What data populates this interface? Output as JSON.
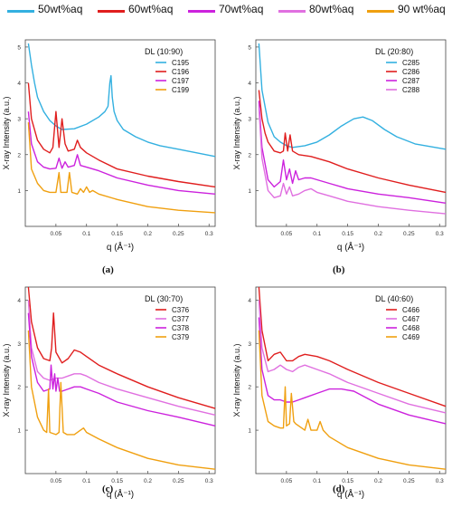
{
  "legend": [
    {
      "label": "50wt%aq",
      "color": "#33b0e0"
    },
    {
      "label": "60wt%aq",
      "color": "#e01e1e"
    },
    {
      "label": "70wt%aq",
      "color": "#cc22dd"
    },
    {
      "label": "80wt%aq",
      "color": "#e070e0"
    },
    {
      "label": "90 wt%aq",
      "color": "#f0a010"
    }
  ],
  "captions": [
    "(a)",
    "(b)",
    "(c)",
    "(d)"
  ],
  "chart_data": [
    {
      "type": "line",
      "title": "DL (10:90)",
      "xlabel": "q (Å⁻¹)",
      "ylabel": "X-ray Intensity (a.u.)",
      "xlim": [
        0,
        0.31
      ],
      "ylim": [
        0,
        5.2
      ],
      "xticks": [
        0.05,
        0.1,
        0.15,
        0.2,
        0.25,
        0.3
      ],
      "xtick_labels": [
        "0.05",
        "0.1",
        "0.15",
        "0.2",
        "0.25",
        "0.3"
      ],
      "yticks": [
        1,
        2,
        3,
        4,
        5
      ],
      "ytick_labels": [
        "1",
        "2",
        "3",
        "4",
        "5"
      ],
      "series": [
        {
          "name": "C195",
          "color": "#33b0e0",
          "x": [
            0.005,
            0.01,
            0.015,
            0.02,
            0.03,
            0.04,
            0.05,
            0.06,
            0.08,
            0.1,
            0.12,
            0.13,
            0.135,
            0.138,
            0.14,
            0.142,
            0.145,
            0.15,
            0.16,
            0.18,
            0.2,
            0.22,
            0.25,
            0.28,
            0.31
          ],
          "y": [
            5.1,
            4.5,
            4.0,
            3.6,
            3.2,
            2.95,
            2.8,
            2.7,
            2.72,
            2.85,
            3.05,
            3.2,
            3.35,
            4.0,
            4.2,
            3.6,
            3.2,
            2.95,
            2.7,
            2.5,
            2.35,
            2.25,
            2.15,
            2.05,
            1.95
          ]
        },
        {
          "name": "C196",
          "color": "#e01e1e",
          "x": [
            0.005,
            0.01,
            0.02,
            0.03,
            0.04,
            0.045,
            0.05,
            0.055,
            0.06,
            0.065,
            0.07,
            0.08,
            0.085,
            0.09,
            0.1,
            0.12,
            0.15,
            0.2,
            0.25,
            0.31
          ],
          "y": [
            4.0,
            3.0,
            2.4,
            2.15,
            2.05,
            2.2,
            3.2,
            2.2,
            3.0,
            2.3,
            2.1,
            2.15,
            2.4,
            2.2,
            2.05,
            1.85,
            1.6,
            1.4,
            1.25,
            1.1
          ]
        },
        {
          "name": "C197",
          "color": "#cc22dd",
          "x": [
            0.005,
            0.01,
            0.02,
            0.03,
            0.04,
            0.05,
            0.055,
            0.06,
            0.065,
            0.07,
            0.08,
            0.085,
            0.09,
            0.1,
            0.12,
            0.15,
            0.2,
            0.25,
            0.31
          ],
          "y": [
            3.2,
            2.3,
            1.8,
            1.65,
            1.6,
            1.62,
            1.9,
            1.62,
            1.8,
            1.65,
            1.7,
            2.0,
            1.7,
            1.65,
            1.55,
            1.35,
            1.15,
            1.0,
            0.9
          ]
        },
        {
          "name": "C199",
          "color": "#f0a010",
          "x": [
            0.005,
            0.01,
            0.02,
            0.03,
            0.04,
            0.05,
            0.055,
            0.058,
            0.062,
            0.068,
            0.072,
            0.076,
            0.085,
            0.09,
            0.095,
            0.1,
            0.105,
            0.11,
            0.12,
            0.15,
            0.2,
            0.25,
            0.31
          ],
          "y": [
            2.9,
            1.6,
            1.2,
            1.0,
            0.95,
            0.95,
            1.5,
            0.95,
            0.95,
            0.95,
            1.5,
            0.95,
            0.9,
            1.05,
            0.95,
            1.1,
            0.95,
            1.0,
            0.9,
            0.75,
            0.55,
            0.45,
            0.38
          ]
        }
      ]
    },
    {
      "type": "line",
      "title": "DL (20:80)",
      "xlabel": "q (Å⁻¹)",
      "ylabel": "X-ray Intensity (a.u.)",
      "xlim": [
        0,
        0.31
      ],
      "ylim": [
        0,
        5.2
      ],
      "xticks": [
        0.05,
        0.1,
        0.15,
        0.2,
        0.25,
        0.3
      ],
      "xtick_labels": [
        "0.05",
        "0.1",
        "0.15",
        "0.2",
        "0.25",
        "0.3"
      ],
      "yticks": [
        1,
        2,
        3,
        4,
        5
      ],
      "ytick_labels": [
        "1",
        "2",
        "3",
        "4",
        "5"
      ],
      "series": [
        {
          "name": "C285",
          "color": "#33b0e0",
          "x": [
            0.005,
            0.01,
            0.02,
            0.03,
            0.04,
            0.05,
            0.06,
            0.08,
            0.1,
            0.12,
            0.14,
            0.16,
            0.175,
            0.19,
            0.21,
            0.23,
            0.26,
            0.31
          ],
          "y": [
            5.1,
            3.8,
            2.9,
            2.5,
            2.35,
            2.25,
            2.2,
            2.25,
            2.35,
            2.55,
            2.8,
            3.0,
            3.05,
            2.95,
            2.7,
            2.5,
            2.3,
            2.15
          ]
        },
        {
          "name": "C286",
          "color": "#e01e1e",
          "x": [
            0.005,
            0.01,
            0.015,
            0.02,
            0.03,
            0.04,
            0.045,
            0.048,
            0.052,
            0.056,
            0.06,
            0.07,
            0.09,
            0.12,
            0.15,
            0.2,
            0.25,
            0.31
          ],
          "y": [
            3.8,
            3.0,
            2.6,
            2.35,
            2.1,
            2.05,
            2.1,
            2.6,
            2.1,
            2.55,
            2.1,
            2.0,
            1.95,
            1.8,
            1.6,
            1.35,
            1.15,
            0.95
          ]
        },
        {
          "name": "C287",
          "color": "#cc22dd",
          "x": [
            0.005,
            0.01,
            0.02,
            0.03,
            0.04,
            0.045,
            0.05,
            0.055,
            0.06,
            0.065,
            0.07,
            0.08,
            0.09,
            0.1,
            0.12,
            0.15,
            0.2,
            0.25,
            0.31
          ],
          "y": [
            3.5,
            2.2,
            1.3,
            1.1,
            1.25,
            1.85,
            1.3,
            1.6,
            1.2,
            1.55,
            1.3,
            1.35,
            1.35,
            1.3,
            1.2,
            1.05,
            0.9,
            0.8,
            0.65
          ]
        },
        {
          "name": "C288",
          "color": "#e070e0",
          "x": [
            0.005,
            0.01,
            0.02,
            0.03,
            0.04,
            0.045,
            0.05,
            0.055,
            0.06,
            0.07,
            0.08,
            0.09,
            0.1,
            0.12,
            0.15,
            0.2,
            0.25,
            0.31
          ],
          "y": [
            3.3,
            1.9,
            1.0,
            0.8,
            0.85,
            1.2,
            0.9,
            1.1,
            0.85,
            0.9,
            1.0,
            1.05,
            0.95,
            0.85,
            0.7,
            0.55,
            0.45,
            0.35
          ]
        }
      ]
    },
    {
      "type": "line",
      "title": "DL (30:70)",
      "xlabel": "q (Å⁻¹)",
      "ylabel": "X-ray Intensity (a.u.)",
      "xlim": [
        0,
        0.31
      ],
      "ylim": [
        0,
        4.3
      ],
      "xticks": [
        0.05,
        0.1,
        0.15,
        0.2,
        0.25,
        0.3
      ],
      "xtick_labels": [
        "0.05",
        "0.1",
        "0.15",
        "0.2",
        "0.25",
        "0.3"
      ],
      "yticks": [
        1,
        2,
        3,
        4
      ],
      "ytick_labels": [
        "1",
        "2",
        "3",
        "4"
      ],
      "series": [
        {
          "name": "C376",
          "color": "#e01e1e",
          "x": [
            0.005,
            0.01,
            0.02,
            0.03,
            0.04,
            0.043,
            0.046,
            0.05,
            0.06,
            0.07,
            0.08,
            0.09,
            0.1,
            0.12,
            0.15,
            0.2,
            0.25,
            0.31
          ],
          "y": [
            4.3,
            3.5,
            2.9,
            2.65,
            2.6,
            2.9,
            3.7,
            2.8,
            2.55,
            2.65,
            2.85,
            2.8,
            2.7,
            2.5,
            2.3,
            2.0,
            1.75,
            1.5
          ]
        },
        {
          "name": "C377",
          "color": "#e070e0",
          "x": [
            0.005,
            0.01,
            0.02,
            0.03,
            0.04,
            0.05,
            0.06,
            0.07,
            0.08,
            0.09,
            0.1,
            0.12,
            0.15,
            0.2,
            0.25,
            0.31
          ],
          "y": [
            4.0,
            2.9,
            2.35,
            2.2,
            2.15,
            2.2,
            2.2,
            2.25,
            2.3,
            2.3,
            2.25,
            2.1,
            1.95,
            1.75,
            1.55,
            1.35
          ]
        },
        {
          "name": "C378",
          "color": "#cc22dd",
          "x": [
            0.005,
            0.01,
            0.02,
            0.03,
            0.04,
            0.042,
            0.045,
            0.048,
            0.05,
            0.053,
            0.056,
            0.06,
            0.07,
            0.08,
            0.09,
            0.1,
            0.12,
            0.15,
            0.2,
            0.25,
            0.31
          ],
          "y": [
            3.7,
            2.7,
            2.1,
            1.9,
            1.95,
            2.5,
            1.95,
            2.3,
            1.9,
            2.2,
            1.9,
            1.9,
            1.95,
            2.0,
            2.0,
            1.95,
            1.85,
            1.65,
            1.45,
            1.3,
            1.1
          ]
        },
        {
          "name": "C379",
          "color": "#f0a010",
          "x": [
            0.005,
            0.01,
            0.02,
            0.03,
            0.035,
            0.038,
            0.04,
            0.05,
            0.055,
            0.058,
            0.062,
            0.068,
            0.08,
            0.09,
            0.095,
            0.1,
            0.12,
            0.15,
            0.2,
            0.25,
            0.31
          ],
          "y": [
            3.3,
            2.0,
            1.3,
            1.0,
            0.95,
            1.95,
            0.95,
            0.9,
            0.95,
            2.1,
            0.95,
            0.9,
            0.9,
            1.0,
            1.05,
            0.95,
            0.8,
            0.6,
            0.35,
            0.2,
            0.1
          ]
        }
      ]
    },
    {
      "type": "line",
      "title": "DL (40:60)",
      "xlabel": "q (Å⁻¹)",
      "ylabel": "X-ray Intensity (a.u.)",
      "xlim": [
        0,
        0.31
      ],
      "ylim": [
        0,
        4.3
      ],
      "xticks": [
        0.05,
        0.1,
        0.15,
        0.2,
        0.25,
        0.3
      ],
      "xtick_labels": [
        "0.05",
        "0.1",
        "0.15",
        "0.2",
        "0.25",
        "0.3"
      ],
      "yticks": [
        1,
        2,
        3,
        4
      ],
      "ytick_labels": [
        "1",
        "2",
        "3",
        "4"
      ],
      "series": [
        {
          "name": "C466",
          "color": "#e01e1e",
          "x": [
            0.005,
            0.01,
            0.02,
            0.03,
            0.04,
            0.05,
            0.06,
            0.07,
            0.08,
            0.1,
            0.12,
            0.15,
            0.2,
            0.25,
            0.31
          ],
          "y": [
            4.3,
            3.3,
            2.6,
            2.75,
            2.8,
            2.6,
            2.6,
            2.7,
            2.75,
            2.7,
            2.6,
            2.4,
            2.1,
            1.85,
            1.55
          ]
        },
        {
          "name": "C467",
          "color": "#e070e0",
          "x": [
            0.005,
            0.01,
            0.02,
            0.03,
            0.04,
            0.05,
            0.06,
            0.07,
            0.08,
            0.1,
            0.12,
            0.15,
            0.2,
            0.25,
            0.31
          ],
          "y": [
            4.0,
            2.9,
            2.35,
            2.4,
            2.5,
            2.4,
            2.35,
            2.45,
            2.5,
            2.4,
            2.3,
            2.1,
            1.85,
            1.6,
            1.4
          ]
        },
        {
          "name": "C468",
          "color": "#cc22dd",
          "x": [
            0.005,
            0.01,
            0.02,
            0.03,
            0.04,
            0.05,
            0.06,
            0.07,
            0.08,
            0.1,
            0.12,
            0.14,
            0.16,
            0.2,
            0.25,
            0.31
          ],
          "y": [
            3.6,
            2.4,
            1.8,
            1.7,
            1.7,
            1.65,
            1.65,
            1.7,
            1.75,
            1.85,
            1.95,
            1.95,
            1.9,
            1.6,
            1.35,
            1.15
          ]
        },
        {
          "name": "C469",
          "color": "#f0a010",
          "x": [
            0.005,
            0.01,
            0.02,
            0.03,
            0.04,
            0.045,
            0.048,
            0.05,
            0.055,
            0.058,
            0.062,
            0.065,
            0.07,
            0.08,
            0.085,
            0.09,
            0.1,
            0.105,
            0.11,
            0.12,
            0.15,
            0.2,
            0.25,
            0.31
          ],
          "y": [
            3.3,
            1.8,
            1.2,
            1.1,
            1.05,
            1.05,
            2.0,
            1.1,
            1.15,
            1.85,
            1.2,
            1.15,
            1.1,
            1.0,
            1.25,
            1.0,
            1.0,
            1.2,
            1.0,
            0.85,
            0.6,
            0.35,
            0.2,
            0.1
          ]
        }
      ]
    }
  ]
}
